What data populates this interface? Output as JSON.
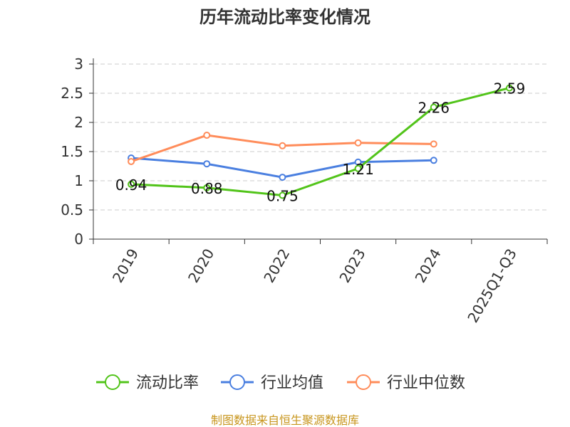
{
  "chart_data": {
    "type": "line",
    "title": "历年流动比率变化情况",
    "categories": [
      "2019",
      "2020",
      "2022",
      "2023",
      "2024",
      "2025Q1-Q3"
    ],
    "ylim": [
      0,
      3
    ],
    "yticks": [
      "0",
      "0.5",
      "1",
      "1.5",
      "2",
      "2.5",
      "3"
    ],
    "grid": true,
    "legend_position": "bottom",
    "series": [
      {
        "name": "流动比率",
        "color": "#52c41a",
        "values": [
          0.94,
          0.88,
          0.75,
          1.21,
          2.26,
          2.59
        ],
        "labels": [
          "0.94",
          "0.88",
          "0.75",
          "1.21",
          "2.26",
          "2.59"
        ]
      },
      {
        "name": "行业均值",
        "color": "#4a7fe0",
        "values": [
          1.39,
          1.29,
          1.06,
          1.32,
          1.35,
          null
        ]
      },
      {
        "name": "行业中位数",
        "color": "#ff8c5a",
        "values": [
          1.33,
          1.78,
          1.6,
          1.65,
          1.63,
          null
        ]
      }
    ]
  },
  "source": "制图数据来自恒生聚源数据库"
}
